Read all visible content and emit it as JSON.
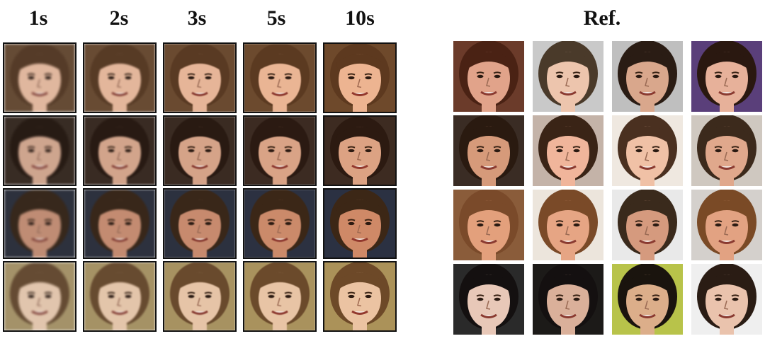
{
  "headers": {
    "time_labels": [
      "1s",
      "2s",
      "3s",
      "5s",
      "10s"
    ],
    "ref_label": "Ref."
  },
  "generated_columns": 5,
  "generated_rows": 4,
  "reference_columns": 4,
  "reference_rows": 4,
  "row_palettes": [
    {
      "bg": "#6b4a2f",
      "hair": "#5a3a22",
      "skin": "#e8b596"
    },
    {
      "bg": "#3b2b22",
      "hair": "#2a1a12",
      "skin": "#d7a387"
    },
    {
      "bg": "#2c3140",
      "hair": "#3a2718",
      "skin": "#c98a6c"
    },
    {
      "bg": "#a8925f",
      "hair": "#6a4a2c",
      "skin": "#e7c4a6"
    }
  ],
  "ref_palettes": [
    [
      {
        "bg": "#6b3b2a",
        "hair": "#4a2214",
        "skin": "#e1a38a"
      },
      {
        "bg": "#c9c9c9",
        "hair": "#4a3a2a",
        "skin": "#edc5ad"
      },
      {
        "bg": "#bfbfbf",
        "hair": "#2a1c14",
        "skin": "#d9a78c"
      },
      {
        "bg": "#5a3f7a",
        "hair": "#2a1810",
        "skin": "#e7b19a"
      }
    ],
    [
      {
        "bg": "#3a2c24",
        "hair": "#2a1a10",
        "skin": "#d69a7a"
      },
      {
        "bg": "#c4b3a8",
        "hair": "#3a2416",
        "skin": "#f0b59b"
      },
      {
        "bg": "#efe8e0",
        "hair": "#4a3020",
        "skin": "#f0c1a6"
      },
      {
        "bg": "#cfc8c0",
        "hair": "#3c2a1c",
        "skin": "#e0a88c"
      }
    ],
    [
      {
        "bg": "#8a5c3a",
        "hair": "#7a4a2a",
        "skin": "#e3a07c"
      },
      {
        "bg": "#ece5dc",
        "hair": "#7a4a28",
        "skin": "#e6a584"
      },
      {
        "bg": "#e9e9e9",
        "hair": "#3a2a1c",
        "skin": "#d59a7e"
      },
      {
        "bg": "#d4d0cc",
        "hair": "#7a4a26",
        "skin": "#e2a282"
      }
    ],
    [
      {
        "bg": "#2a2a2a",
        "hair": "#141010",
        "skin": "#e8c8b8"
      },
      {
        "bg": "#1c1a18",
        "hair": "#141010",
        "skin": "#dab09a"
      },
      {
        "bg": "#b8c34a",
        "hair": "#1a140e",
        "skin": "#dcae8a"
      },
      {
        "bg": "#efefef",
        "hair": "#2a1c14",
        "skin": "#eac3ad"
      }
    ]
  ]
}
